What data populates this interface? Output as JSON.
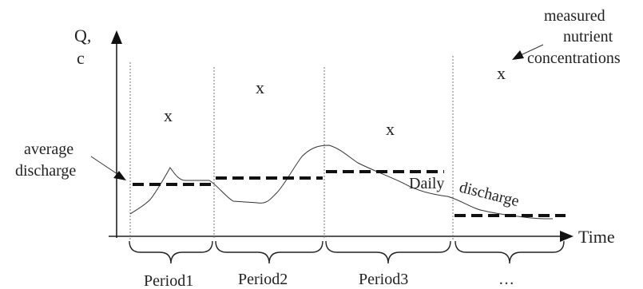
{
  "axes": {
    "y_label_line1": "Q,",
    "y_label_line2": "c",
    "x_label": "Time"
  },
  "periods": [
    "Period1",
    "Period2",
    "Period3",
    "…"
  ],
  "annotations": {
    "average_discharge_line1": "average",
    "average_discharge_line2": "discharge",
    "measured_line1": "measured",
    "measured_line2": "nutrient",
    "measured_line3": "concentrations",
    "daily": "Daily",
    "discharge": "discharge"
  },
  "concentration_marker": "x",
  "colors": {
    "line": "#222222",
    "divider": "#777777",
    "dashed": "#111111"
  }
}
